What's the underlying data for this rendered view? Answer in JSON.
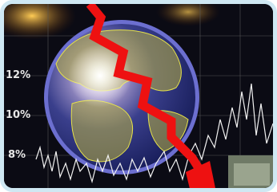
{
  "labels": [
    "12%",
    "10%",
    "8%"
  ]
}
